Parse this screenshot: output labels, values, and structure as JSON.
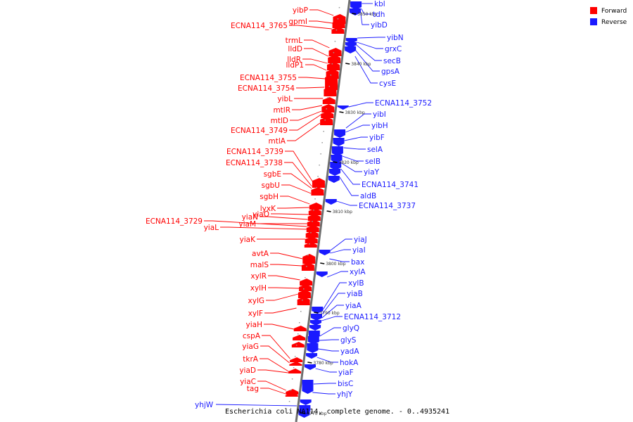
{
  "colors": {
    "forward": "#ff0000",
    "reverse": "#1a1aff",
    "backbone": "#7f7f7f",
    "line": "#ff0000",
    "reverse_line": "#1a1aff"
  },
  "legend": [
    {
      "label": "Forward",
      "color": "#ff0000"
    },
    {
      "label": "Reverse",
      "color": "#1a1aff"
    }
  ],
  "title": "Escherichia coli NA114, complete genome. - 0..4935241",
  "ticks": [
    "3850 kbp",
    "3840 kbp",
    "3830 kbp",
    "3820 kbp",
    "3810 kbp",
    "3800 kbp",
    "3790 kbp",
    "3780 kbp",
    "3770 kbp"
  ],
  "forward_genes": [
    "yibP",
    "gpmI",
    "ECNA114_3765",
    "trmL",
    "lldD",
    "lldR",
    "lldP1",
    "ECNA114_3755",
    "ECNA114_3754",
    "yibL",
    "mtlR",
    "mtlD",
    "ECNA114_3749",
    "mtlA",
    "ECNA114_3739",
    "ECNA114_3738",
    "sgbE",
    "sgbU",
    "sgbH",
    "lyxK",
    "yiaO",
    "yiaN",
    "yiaM",
    "ECNA114_3729",
    "yiaL",
    "yiaK",
    "avtA",
    "malS",
    "xylR",
    "xylH",
    "xylG",
    "xylF",
    "yiaH",
    "cspA",
    "yiaG",
    "tkrA",
    "yiaD",
    "yiaC",
    "tag"
  ],
  "reverse_genes": [
    "kbl",
    "tdh",
    "yibD",
    "yibN",
    "grxC",
    "secB",
    "gpsA",
    "cysE",
    "ECNA114_3752",
    "yibI",
    "yibH",
    "yibF",
    "selA",
    "selB",
    "yiaY",
    "ECNA114_3741",
    "aldB",
    "ECNA114_3737",
    "yiaJ",
    "yiaI",
    "bax",
    "xylA",
    "xylB",
    "yiaB",
    "yiaA",
    "ECNA114_3712",
    "glyQ",
    "glyS",
    "yadA",
    "hokA",
    "yiaF",
    "bisC",
    "yhjY",
    "yhjW"
  ]
}
